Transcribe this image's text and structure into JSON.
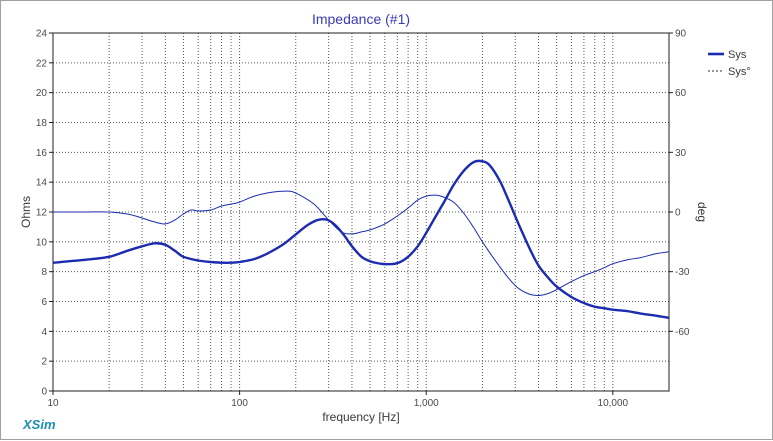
{
  "chart_data": {
    "type": "line",
    "title": "Impedance (#1)",
    "xlabel": "frequency [Hz]",
    "ylabel": "Ohms",
    "y2label": "deg",
    "xscale": "log",
    "xlim": [
      10,
      20000
    ],
    "ylim": [
      0,
      24
    ],
    "y2lim": [
      -90,
      90
    ],
    "x_ticks": [
      {
        "v": 10,
        "label": "10"
      },
      {
        "v": 100,
        "label": "100"
      },
      {
        "v": 1000,
        "label": "1,000"
      },
      {
        "v": 10000,
        "label": "10,000"
      }
    ],
    "y_ticks": [
      0,
      2,
      4,
      6,
      8,
      10,
      12,
      14,
      16,
      18,
      20,
      22,
      24
    ],
    "y2_ticks": [
      -60,
      -30,
      0,
      30,
      60,
      90
    ],
    "grid": true,
    "legend_position": "top-right",
    "series": [
      {
        "name": "Sys",
        "axis": "left",
        "style": "solid-thick",
        "color": "#1c2cb0",
        "points": [
          [
            10,
            8.6
          ],
          [
            15,
            8.8
          ],
          [
            20,
            9.0
          ],
          [
            25,
            9.4
          ],
          [
            30,
            9.7
          ],
          [
            35,
            9.9
          ],
          [
            40,
            9.8
          ],
          [
            45,
            9.4
          ],
          [
            50,
            9.0
          ],
          [
            60,
            8.75
          ],
          [
            70,
            8.65
          ],
          [
            80,
            8.6
          ],
          [
            90,
            8.6
          ],
          [
            100,
            8.65
          ],
          [
            120,
            8.85
          ],
          [
            140,
            9.2
          ],
          [
            170,
            9.8
          ],
          [
            200,
            10.5
          ],
          [
            230,
            11.1
          ],
          [
            260,
            11.45
          ],
          [
            290,
            11.5
          ],
          [
            320,
            11.2
          ],
          [
            360,
            10.5
          ],
          [
            400,
            9.7
          ],
          [
            450,
            9.0
          ],
          [
            500,
            8.7
          ],
          [
            560,
            8.55
          ],
          [
            630,
            8.5
          ],
          [
            710,
            8.6
          ],
          [
            800,
            9.0
          ],
          [
            900,
            9.7
          ],
          [
            1000,
            10.6
          ],
          [
            1100,
            11.5
          ],
          [
            1250,
            12.7
          ],
          [
            1400,
            13.8
          ],
          [
            1600,
            14.8
          ],
          [
            1800,
            15.35
          ],
          [
            2000,
            15.4
          ],
          [
            2200,
            15.1
          ],
          [
            2500,
            14.0
          ],
          [
            2800,
            12.6
          ],
          [
            3200,
            10.9
          ],
          [
            3600,
            9.5
          ],
          [
            4000,
            8.4
          ],
          [
            4500,
            7.6
          ],
          [
            5000,
            7.0
          ],
          [
            6000,
            6.3
          ],
          [
            7000,
            5.9
          ],
          [
            8000,
            5.65
          ],
          [
            9000,
            5.55
          ],
          [
            10000,
            5.45
          ],
          [
            12000,
            5.35
          ],
          [
            14000,
            5.2
          ],
          [
            17000,
            5.05
          ],
          [
            20000,
            4.9
          ]
        ]
      },
      {
        "name": "Sys°",
        "axis": "right",
        "style": "solid-thin",
        "color": "#1c2cb0",
        "points": [
          [
            10,
            0
          ],
          [
            15,
            0
          ],
          [
            20,
            0
          ],
          [
            25,
            -1
          ],
          [
            30,
            -3
          ],
          [
            35,
            -5
          ],
          [
            40,
            -6
          ],
          [
            45,
            -4
          ],
          [
            50,
            -1
          ],
          [
            55,
            1
          ],
          [
            60,
            0.5
          ],
          [
            70,
            1
          ],
          [
            80,
            3
          ],
          [
            90,
            4
          ],
          [
            100,
            5
          ],
          [
            120,
            8
          ],
          [
            150,
            10
          ],
          [
            180,
            10.5
          ],
          [
            200,
            9.5
          ],
          [
            250,
            4
          ],
          [
            300,
            -4
          ],
          [
            350,
            -10
          ],
          [
            400,
            -11
          ],
          [
            450,
            -10
          ],
          [
            500,
            -9
          ],
          [
            600,
            -6
          ],
          [
            700,
            -2
          ],
          [
            800,
            2
          ],
          [
            900,
            6
          ],
          [
            1000,
            8
          ],
          [
            1100,
            8.5
          ],
          [
            1200,
            8
          ],
          [
            1400,
            5
          ],
          [
            1600,
            -1
          ],
          [
            1800,
            -8
          ],
          [
            2000,
            -15
          ],
          [
            2500,
            -28
          ],
          [
            3000,
            -37
          ],
          [
            3500,
            -41
          ],
          [
            4000,
            -42
          ],
          [
            4500,
            -41
          ],
          [
            5000,
            -39
          ],
          [
            6000,
            -35
          ],
          [
            7000,
            -32
          ],
          [
            8000,
            -30
          ],
          [
            9000,
            -28
          ],
          [
            10000,
            -26
          ],
          [
            12000,
            -24
          ],
          [
            14000,
            -23
          ],
          [
            17000,
            -21
          ],
          [
            20000,
            -20
          ]
        ]
      }
    ]
  },
  "brand": "XSim"
}
